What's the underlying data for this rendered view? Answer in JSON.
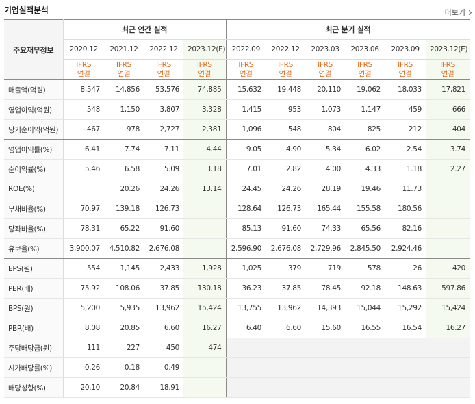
{
  "header": {
    "title": "기업실적분석",
    "more_label": "더보기"
  },
  "table": {
    "corner_label": "주요재무정보",
    "annual_label": "최근 연간 실적",
    "quarter_label": "최근 분기 실적",
    "periods": [
      "2020.12",
      "2021.12",
      "2022.12",
      "2023.12(E)",
      "2022.09",
      "2022.12",
      "2023.03",
      "2023.06",
      "2023.09",
      "2023.12(E)"
    ],
    "std_top": "IFRS",
    "std_bottom": "연결",
    "rows": [
      {
        "label": "매출액(억원)",
        "values": [
          "8,547",
          "14,856",
          "53,576",
          "74,885",
          "15,632",
          "19,448",
          "20,110",
          "19,062",
          "18,033",
          "17,821"
        ]
      },
      {
        "label": "영업이익(억원)",
        "values": [
          "548",
          "1,150",
          "3,807",
          "3,328",
          "1,415",
          "953",
          "1,073",
          "1,147",
          "459",
          "666"
        ]
      },
      {
        "label": "당기순이익(억원)",
        "values": [
          "467",
          "978",
          "2,727",
          "2,381",
          "1,096",
          "548",
          "804",
          "825",
          "212",
          "404"
        ]
      },
      {
        "label": "영업이익률(%)",
        "values": [
          "6.41",
          "7.74",
          "7.11",
          "4.44",
          "9.05",
          "4.90",
          "5.34",
          "6.02",
          "2.54",
          "3.74"
        ]
      },
      {
        "label": "순이익률(%)",
        "values": [
          "5.46",
          "6.58",
          "5.09",
          "3.18",
          "7.01",
          "2.82",
          "4.00",
          "4.33",
          "1.18",
          "2.27"
        ]
      },
      {
        "label": "ROE(%)",
        "values": [
          "",
          "20.26",
          "24.26",
          "13.14",
          "24.45",
          "24.26",
          "28.19",
          "19.46",
          "11.73",
          ""
        ]
      },
      {
        "label": "부채비율(%)",
        "values": [
          "70.97",
          "139.18",
          "126.73",
          "",
          "128.64",
          "126.73",
          "165.44",
          "155.58",
          "180.56",
          ""
        ]
      },
      {
        "label": "당좌비율(%)",
        "values": [
          "78.31",
          "65.22",
          "91.60",
          "",
          "85.13",
          "91.60",
          "74.33",
          "65.56",
          "82.16",
          ""
        ]
      },
      {
        "label": "유보율(%)",
        "values": [
          "3,900.07",
          "4,510.82",
          "2,676.08",
          "",
          "2,596.90",
          "2,676.08",
          "2,729.96",
          "2,845.50",
          "2,924.46",
          ""
        ]
      },
      {
        "label": "EPS(원)",
        "values": [
          "554",
          "1,145",
          "2,433",
          "1,928",
          "1,025",
          "379",
          "719",
          "578",
          "26",
          "420"
        ]
      },
      {
        "label": "PER(배)",
        "values": [
          "75.92",
          "108.06",
          "37.85",
          "130.18",
          "36.23",
          "37.85",
          "78.45",
          "92.18",
          "148.63",
          "597.86"
        ]
      },
      {
        "label": "BPS(원)",
        "values": [
          "5,200",
          "5,935",
          "13,962",
          "15,424",
          "13,755",
          "13,962",
          "14,393",
          "15,044",
          "15,292",
          "15,424"
        ]
      },
      {
        "label": "PBR(배)",
        "values": [
          "8.08",
          "20.85",
          "6.60",
          "16.27",
          "6.40",
          "6.60",
          "15.60",
          "16.55",
          "16.54",
          "16.27"
        ]
      },
      {
        "label": "주당배당금(원)",
        "values": [
          "111",
          "227",
          "450",
          "474",
          "",
          "",
          "",
          "",
          "",
          ""
        ]
      },
      {
        "label": "시가배당률(%)",
        "values": [
          "0.26",
          "0.18",
          "0.49",
          "",
          "",
          "",
          "",
          "",
          "",
          ""
        ]
      },
      {
        "label": "배당성향(%)",
        "values": [
          "20.10",
          "20.84",
          "18.91",
          "",
          "",
          "",
          "",
          "",
          "",
          ""
        ]
      }
    ]
  }
}
